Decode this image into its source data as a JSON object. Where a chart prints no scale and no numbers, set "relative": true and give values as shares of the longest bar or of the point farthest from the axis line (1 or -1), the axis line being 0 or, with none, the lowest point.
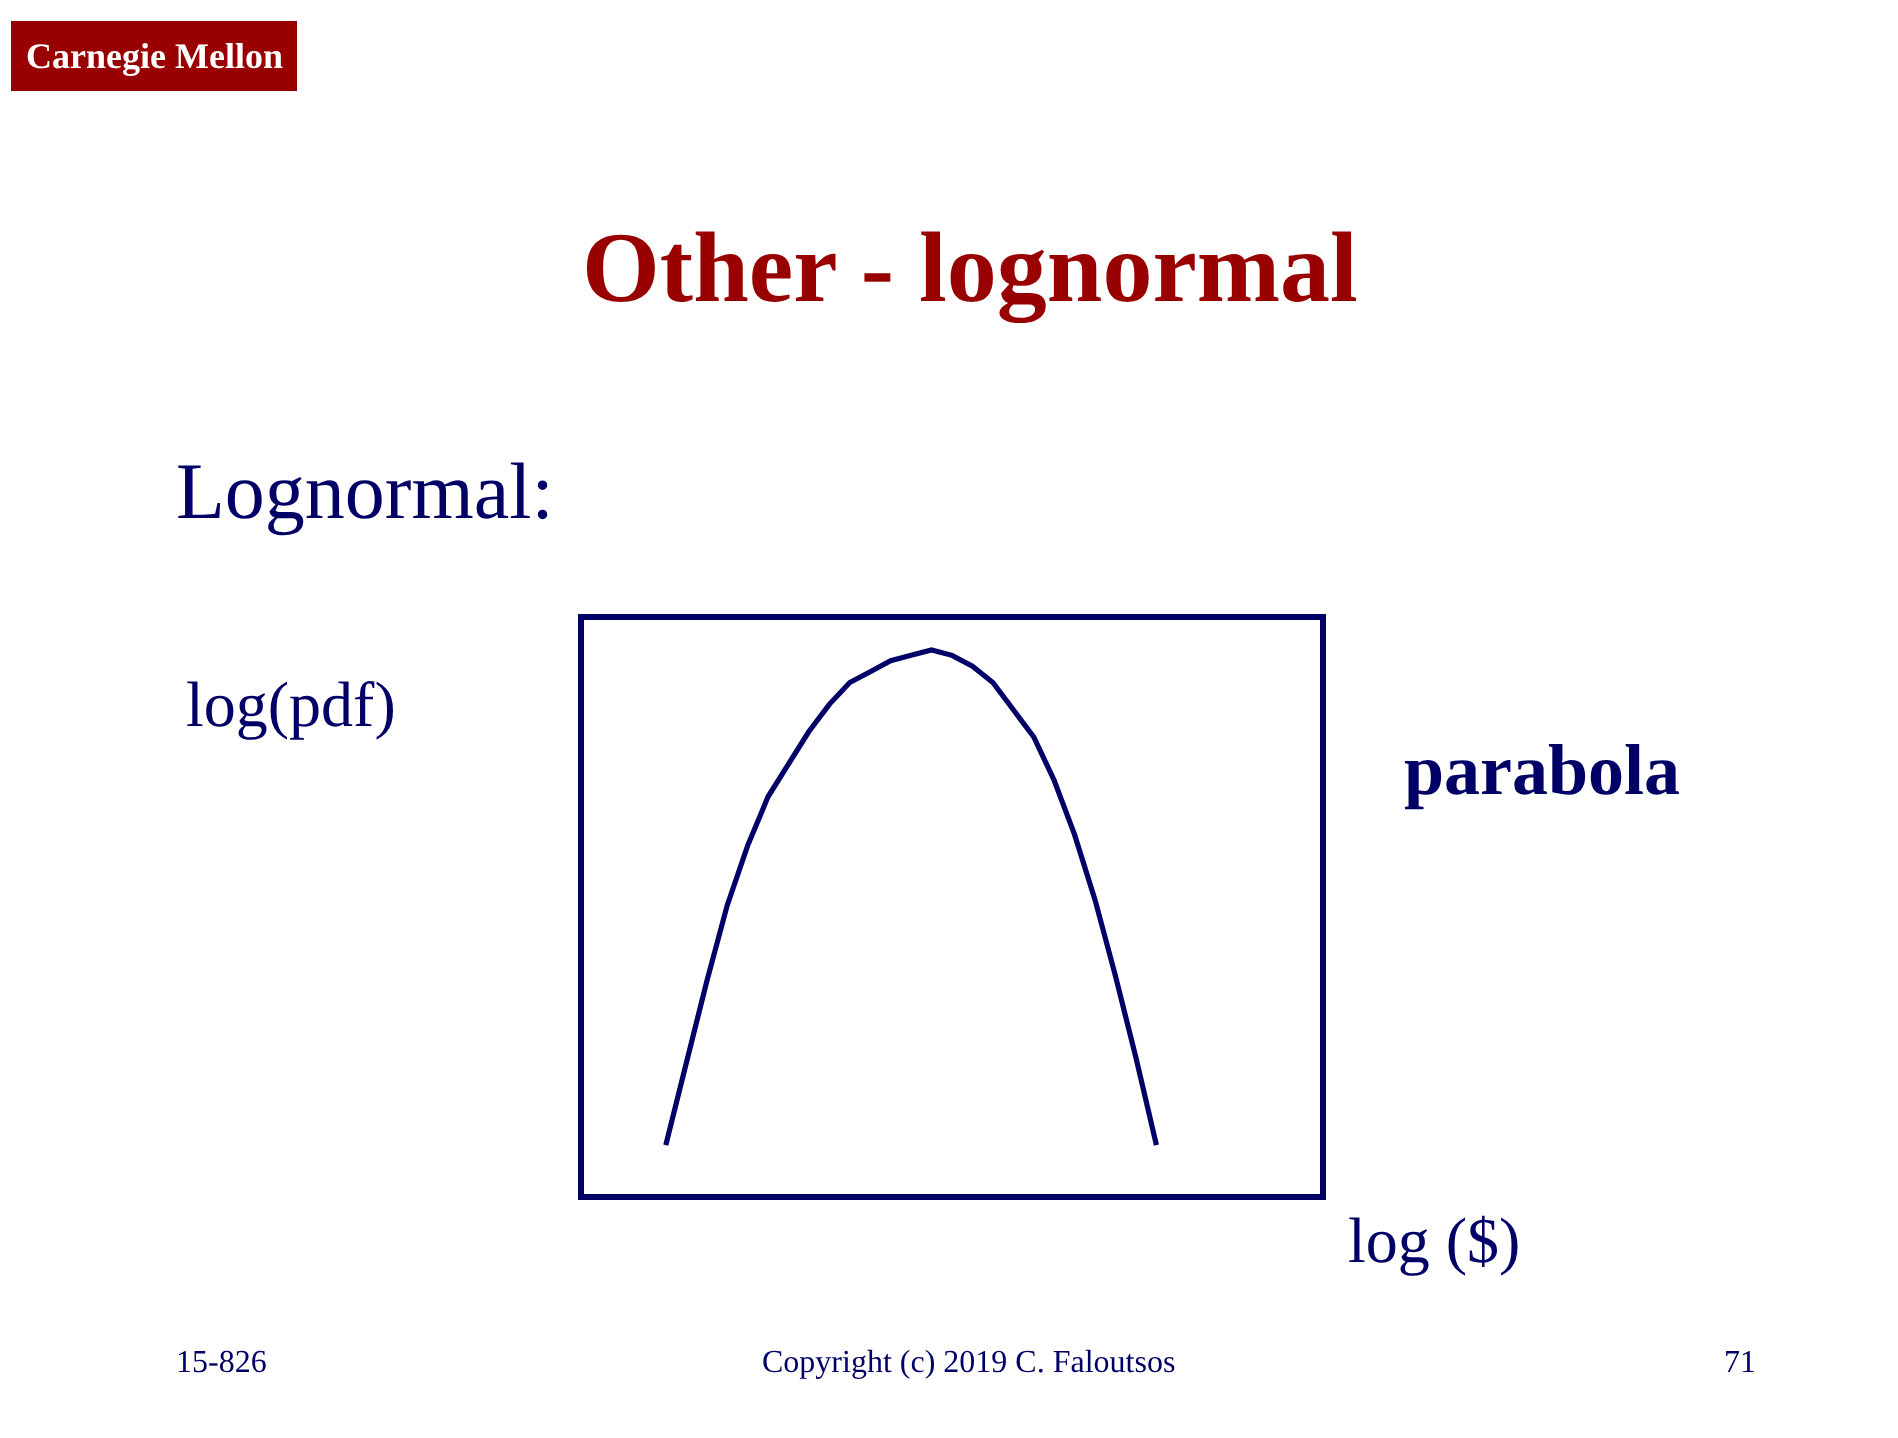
{
  "chart_data": {
    "type": "line",
    "title": "Other - lognormal",
    "subtitle": "Lognormal:",
    "xlabel": "log ($)",
    "ylabel": "log(pdf)",
    "annotations": [
      "parabola",
      "15-826",
      "Copyright (c) 2019 C. Faloutsos",
      "71",
      "Carnegie Mellon"
    ],
    "relative": true,
    "categories": [
      null,
      null,
      null,
      null,
      null,
      null,
      null,
      null,
      null,
      null,
      null,
      null,
      null,
      null,
      null,
      null,
      null,
      null,
      null,
      null,
      null,
      null,
      null,
      null,
      null,
      null,
      null,
      null,
      null,
      null,
      null,
      null,
      null,
      null,
      null,
      null,
      null
    ],
    "series": [
      {
        "color": "#000066",
        "values": [
          null,
          null,
          null,
          null,
          0.09,
          0.24,
          0.39,
          0.53,
          0.64,
          0.73,
          0.79,
          0.85,
          0.9,
          0.94,
          0.96,
          0.98,
          0.99,
          1,
          0.99,
          0.97,
          0.94,
          0.89,
          0.84,
          0.76,
          0.66,
          0.54,
          0.4,
          0.25,
          0.09,
          null,
          null,
          null,
          null,
          null,
          null,
          null,
          null
        ]
      }
    ]
  }
}
